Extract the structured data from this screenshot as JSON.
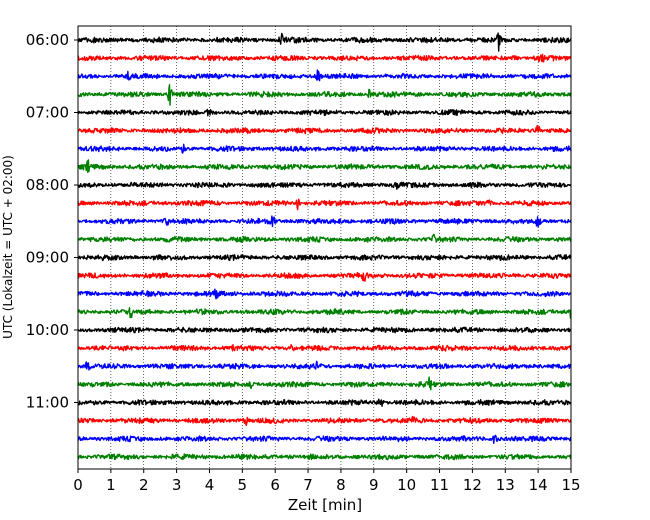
{
  "chart_data": {
    "type": "line",
    "title": "",
    "xlabel": "Zeit  [min]",
    "ylabel": "UTC (Lokalzeit = UTC + 02:00)",
    "xlim": [
      0,
      15
    ],
    "x_ticks": [
      "0",
      "1",
      "2",
      "3",
      "4",
      "5",
      "6",
      "7",
      "8",
      "9",
      "10",
      "11",
      "12",
      "13",
      "14",
      "15"
    ],
    "y_ticks": [
      "06:00",
      "07:00",
      "08:00",
      "09:00",
      "10:00",
      "11:00"
    ],
    "grid": "vertical dotted",
    "trace_interval_min": 15,
    "trace_start": "06:00",
    "trace_count": 24,
    "colors": [
      "#000000",
      "#ff0000",
      "#0000ff",
      "#008000"
    ],
    "events": [
      {
        "trace": 0,
        "minute": 6.2,
        "amp": 5
      },
      {
        "trace": 0,
        "minute": 12.8,
        "amp": 8
      },
      {
        "trace": 1,
        "minute": 14.1,
        "amp": 6
      },
      {
        "trace": 1,
        "minute": 13.3,
        "amp": 4
      },
      {
        "trace": 2,
        "minute": 7.3,
        "amp": 8
      },
      {
        "trace": 2,
        "minute": 1.5,
        "amp": 4
      },
      {
        "trace": 3,
        "minute": 2.8,
        "amp": 10
      },
      {
        "trace": 3,
        "minute": 8.9,
        "amp": 6
      },
      {
        "trace": 4,
        "minute": 4.0,
        "amp": 6
      },
      {
        "trace": 5,
        "minute": 14.0,
        "amp": 4
      },
      {
        "trace": 6,
        "minute": 3.2,
        "amp": 4
      },
      {
        "trace": 7,
        "minute": 0.3,
        "amp": 5
      },
      {
        "trace": 8,
        "minute": 9.7,
        "amp": 5
      },
      {
        "trace": 9,
        "minute": 6.7,
        "amp": 5
      },
      {
        "trace": 9,
        "minute": 12.5,
        "amp": 4
      },
      {
        "trace": 10,
        "minute": 5.9,
        "amp": 8
      },
      {
        "trace": 10,
        "minute": 2.7,
        "amp": 5
      },
      {
        "trace": 10,
        "minute": 14.0,
        "amp": 5
      },
      {
        "trace": 11,
        "minute": 10.8,
        "amp": 4
      },
      {
        "trace": 13,
        "minute": 8.7,
        "amp": 6
      },
      {
        "trace": 14,
        "minute": 4.2,
        "amp": 4
      },
      {
        "trace": 15,
        "minute": 1.6,
        "amp": 4
      },
      {
        "trace": 15,
        "minute": 15.0,
        "amp": 5
      },
      {
        "trace": 17,
        "minute": 4.7,
        "amp": 5
      },
      {
        "trace": 17,
        "minute": 6.5,
        "amp": 4
      },
      {
        "trace": 18,
        "minute": 7.3,
        "amp": 4
      },
      {
        "trace": 18,
        "minute": 0.3,
        "amp": 4
      },
      {
        "trace": 19,
        "minute": 5.3,
        "amp": 4
      },
      {
        "trace": 19,
        "minute": 10.7,
        "amp": 5
      },
      {
        "trace": 20,
        "minute": 9.2,
        "amp": 6
      },
      {
        "trace": 21,
        "minute": 5.1,
        "amp": 4
      },
      {
        "trace": 21,
        "minute": 10.2,
        "amp": 3
      },
      {
        "trace": 22,
        "minute": 12.7,
        "amp": 8
      }
    ]
  }
}
